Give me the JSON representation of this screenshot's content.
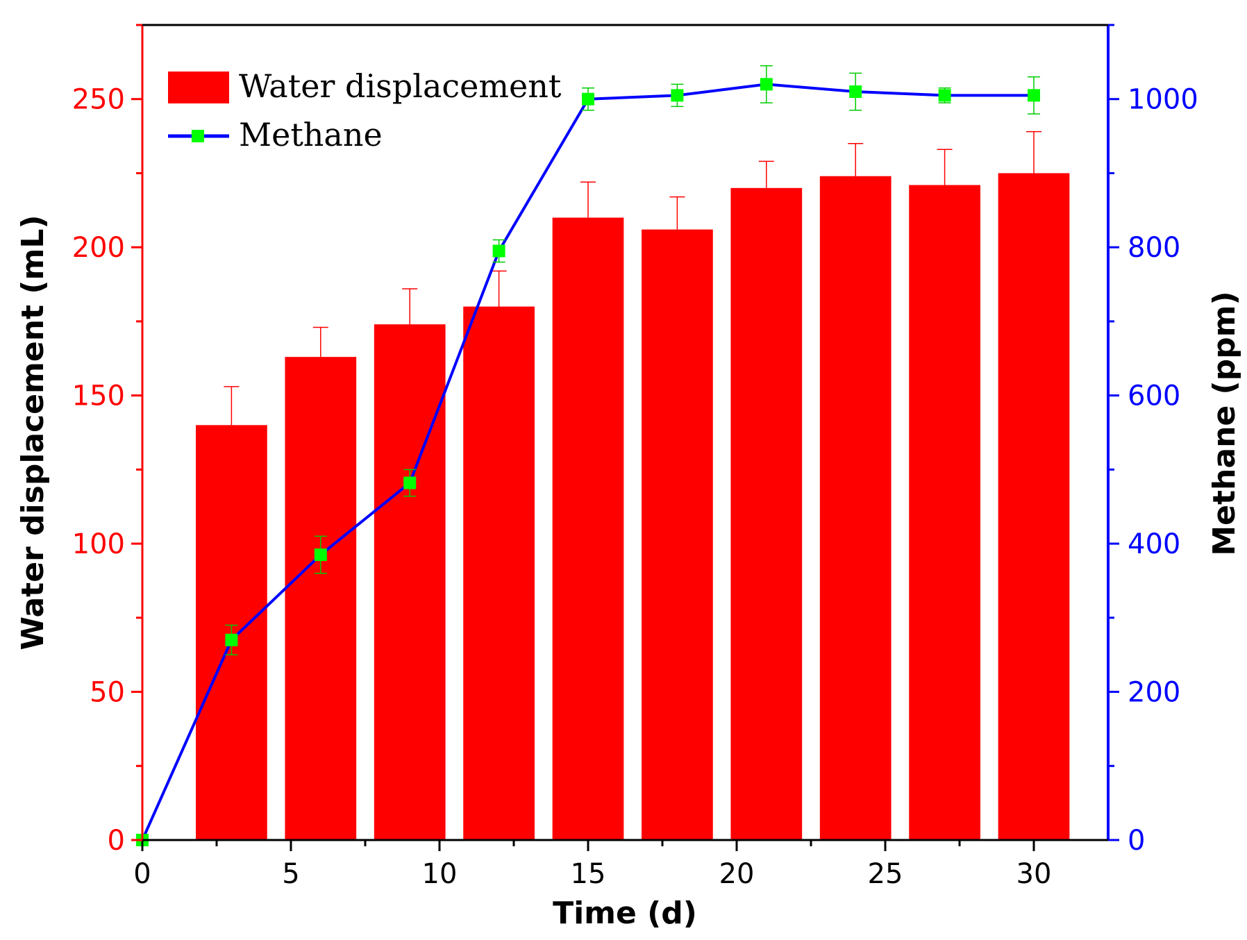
{
  "chart_data": {
    "type": "bar",
    "xlabel": "Time (d)",
    "ylabel_left": "Water displacement (mL)",
    "ylabel_right": "Methane (ppm)",
    "xlim": [
      0,
      32.5
    ],
    "ylim_left": [
      0,
      275
    ],
    "ylim_right": [
      0,
      1100
    ],
    "x_ticks": [
      0,
      5,
      10,
      15,
      20,
      25,
      30
    ],
    "y_left_ticks": [
      0,
      50,
      100,
      150,
      200,
      250
    ],
    "y_right_ticks": [
      0,
      200,
      400,
      600,
      800,
      1000
    ],
    "legend_position": "top-left",
    "colors": {
      "bars": "#ff0000",
      "left_axis": "#ff0000",
      "right_axis": "#0000ff",
      "line": "#0000ff",
      "markers": "#00ff00",
      "marker_errors": "#00cc00"
    },
    "series": [
      {
        "name": "Water displacement",
        "type": "bar",
        "axis": "left",
        "x": [
          3,
          6,
          9,
          12,
          15,
          18,
          21,
          24,
          27,
          30
        ],
        "values": [
          140,
          163,
          174,
          180,
          210,
          206,
          220,
          224,
          221,
          225
        ],
        "error": [
          13,
          10,
          12,
          12,
          12,
          11,
          9,
          11,
          12,
          14
        ]
      },
      {
        "name": "Methane",
        "type": "line",
        "axis": "right",
        "x": [
          0,
          3,
          6,
          9,
          12,
          15,
          18,
          21,
          24,
          27,
          30
        ],
        "values": [
          0,
          270,
          385,
          482,
          795,
          1000,
          1005,
          1020,
          1010,
          1005,
          1005
        ],
        "error": [
          0,
          20,
          25,
          18,
          15,
          15,
          15,
          25,
          25,
          10,
          25
        ]
      }
    ]
  }
}
